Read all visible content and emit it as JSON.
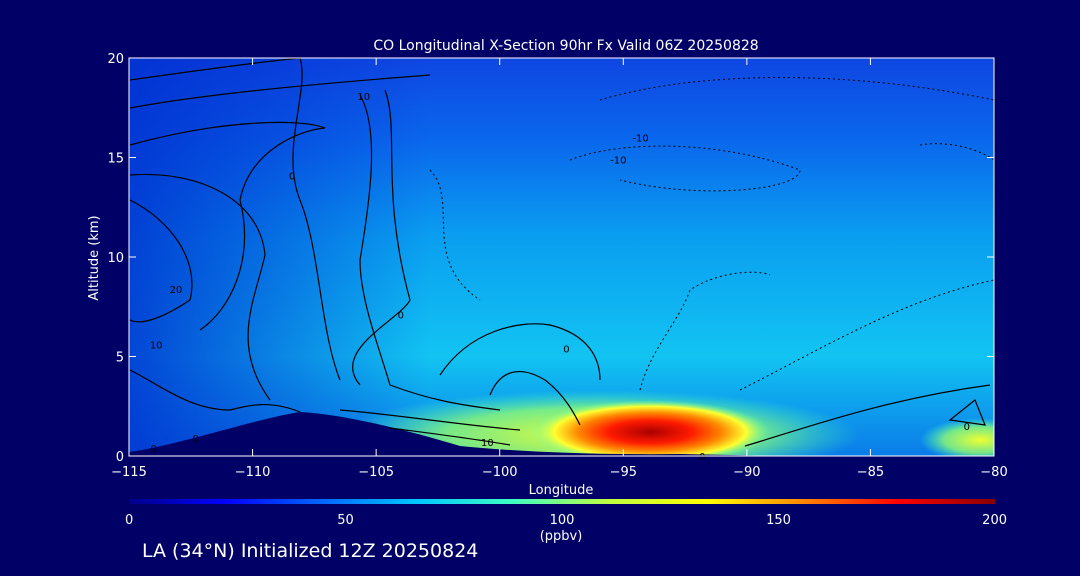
{
  "chart_data": {
    "type": "heatmap",
    "title": "CO Longitudinal X-Section 90hr  Fx Valid 06Z 20250828",
    "xlabel": "Longitude",
    "ylabel": "Altitude (km)",
    "xlim": [
      -115,
      -80
    ],
    "ylim": [
      0,
      20
    ],
    "x_ticks": [
      -115,
      -110,
      -105,
      -100,
      -95,
      -90,
      -85,
      -80
    ],
    "x_tick_labels": [
      "−115",
      "−110",
      "−105",
      "−100",
      "−95",
      "−90",
      "−85",
      "−80"
    ],
    "y_ticks": [
      0,
      5,
      10,
      15,
      20
    ],
    "y_tick_labels": [
      "0",
      "5",
      "10",
      "15",
      "20"
    ],
    "colorbar": {
      "min": 0,
      "max": 200,
      "unit": "(ppbv)",
      "ticks": [
        0,
        50,
        100,
        150,
        200
      ],
      "tick_labels": [
        "0",
        "50",
        "100",
        "150",
        "200"
      ],
      "colors": [
        "#000088",
        "#0000ff",
        "#0066ff",
        "#00c8ff",
        "#40ffc0",
        "#c0ff40",
        "#ffff00",
        "#ff8800",
        "#ff0000",
        "#880000"
      ]
    },
    "contour_labels": [
      {
        "text": "0",
        "lon": -104,
        "alt": 7.1
      },
      {
        "text": "0",
        "lon": -97.3,
        "alt": 5.4
      },
      {
        "text": "0",
        "lon": -108.4,
        "alt": 14.1
      },
      {
        "text": "0",
        "lon": -112.3,
        "alt": 0.9
      },
      {
        "text": "0",
        "lon": -114,
        "alt": 0.4
      },
      {
        "text": "0",
        "lon": -81.1,
        "alt": 1.5
      },
      {
        "text": "0",
        "lon": -91.8,
        "alt": 0.0
      },
      {
        "text": "10",
        "lon": -100.5,
        "alt": 0.7
      },
      {
        "text": "10",
        "lon": -105.5,
        "alt": 18.1
      },
      {
        "text": "10",
        "lon": -113.9,
        "alt": 5.6
      },
      {
        "text": "20",
        "lon": -113.1,
        "alt": 8.4
      },
      {
        "text": "-10",
        "lon": -94.3,
        "alt": 16.0
      },
      {
        "text": "-10",
        "lon": -95.2,
        "alt": 14.9
      }
    ]
  },
  "footer": {
    "caption": "LA (34°N) Initialized 12Z 20250824"
  }
}
